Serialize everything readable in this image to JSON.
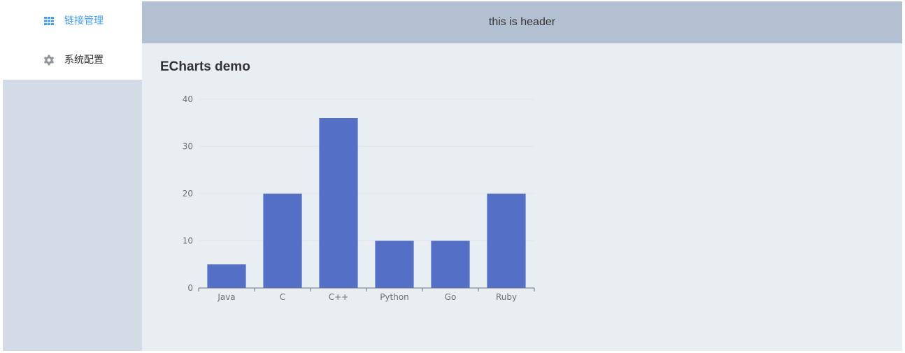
{
  "sidebar": {
    "items": [
      {
        "label": "链接管理",
        "icon": "grid-icon",
        "active": true
      },
      {
        "label": "系统配置",
        "icon": "gear-icon",
        "active": false
      }
    ]
  },
  "header": {
    "title": "this is header"
  },
  "main": {
    "title": "ECharts demo"
  },
  "colors": {
    "accent": "#409eff",
    "bar": "#5470c6",
    "header_bg": "#b3c0d1",
    "main_bg": "#e9eef3",
    "sidebar_bg": "#d3dce6"
  },
  "chart_data": {
    "type": "bar",
    "categories": [
      "Java",
      "C",
      "C++",
      "Python",
      "Go",
      "Ruby"
    ],
    "values": [
      5,
      20,
      36,
      10,
      10,
      20
    ],
    "ylim": [
      0,
      40
    ],
    "yticks": [
      0,
      10,
      20,
      30,
      40
    ],
    "grid": true,
    "legend": false
  }
}
